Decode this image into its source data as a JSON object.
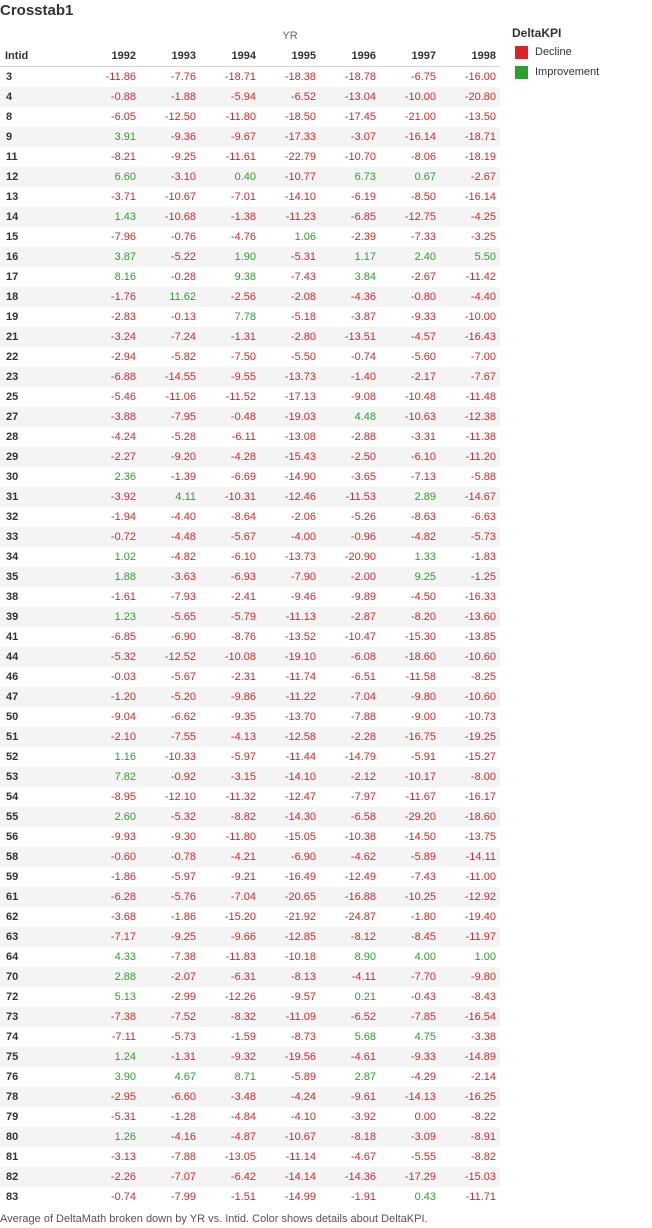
{
  "title": "Crosstab1",
  "column_group_label": "YR",
  "row_header": "Intid",
  "legend": {
    "title": "DeltaKPI",
    "items": [
      {
        "label": "Decline",
        "color": "#d62728"
      },
      {
        "label": "Improvement",
        "color": "#2ca02c"
      }
    ]
  },
  "colors": {
    "decline": "#d62728",
    "improvement": "#2ca02c"
  },
  "caption": "Average of DeltaMath broken down by YR vs. Intid.  Color shows details about DeltaKPI.",
  "chart_data": {
    "type": "table",
    "columns": [
      "1992",
      "1993",
      "1994",
      "1995",
      "1996",
      "1997",
      "1998"
    ],
    "rows": [
      {
        "id": "3",
        "values": [
          "-11.86",
          "-7.76",
          "-18.71",
          "-18.38",
          "-18.78",
          "-6.75",
          "-16.00"
        ]
      },
      {
        "id": "4",
        "values": [
          "-0.88",
          "-1.88",
          "-5.94",
          "-6.52",
          "-13.04",
          "-10.00",
          "-20.80"
        ]
      },
      {
        "id": "8",
        "values": [
          "-6.05",
          "-12.50",
          "-11.80",
          "-18.50",
          "-17.45",
          "-21.00",
          "-13.50"
        ]
      },
      {
        "id": "9",
        "values": [
          "3.91",
          "-9.36",
          "-9.67",
          "-17.33",
          "-3.07",
          "-16.14",
          "-18.71"
        ]
      },
      {
        "id": "11",
        "values": [
          "-8.21",
          "-9.25",
          "-11.61",
          "-22.79",
          "-10.70",
          "-8.06",
          "-18.19"
        ]
      },
      {
        "id": "12",
        "values": [
          "6.60",
          "-3.10",
          "0.40",
          "-10.77",
          "6.73",
          "0.67",
          "-2.67"
        ]
      },
      {
        "id": "13",
        "values": [
          "-3.71",
          "-10.67",
          "-7.01",
          "-14.10",
          "-6.19",
          "-8.50",
          "-16.14"
        ]
      },
      {
        "id": "14",
        "values": [
          "1.43",
          "-10.68",
          "-1.38",
          "-11.23",
          "-6.85",
          "-12.75",
          "-4.25"
        ]
      },
      {
        "id": "15",
        "values": [
          "-7.96",
          "-0.76",
          "-4.76",
          "1.06",
          "-2.39",
          "-7.33",
          "-3.25"
        ]
      },
      {
        "id": "16",
        "values": [
          "3.87",
          "-5.22",
          "1.90",
          "-5.31",
          "1.17",
          "2.40",
          "5.50"
        ]
      },
      {
        "id": "17",
        "values": [
          "8.16",
          "-0.28",
          "9.38",
          "-7.43",
          "3.84",
          "-2.67",
          "-11.42"
        ]
      },
      {
        "id": "18",
        "values": [
          "-1.76",
          "11.62",
          "-2.56",
          "-2.08",
          "-4.36",
          "-0.80",
          "-4.40"
        ]
      },
      {
        "id": "19",
        "values": [
          "-2.83",
          "-0.13",
          "7.78",
          "-5.18",
          "-3.87",
          "-9.33",
          "-10.00"
        ]
      },
      {
        "id": "21",
        "values": [
          "-3.24",
          "-7.24",
          "-1.31",
          "-2.80",
          "-13.51",
          "-4.57",
          "-16.43"
        ]
      },
      {
        "id": "22",
        "values": [
          "-2.94",
          "-5.82",
          "-7.50",
          "-5.50",
          "-0.74",
          "-5.60",
          "-7.00"
        ]
      },
      {
        "id": "23",
        "values": [
          "-6.88",
          "-14.55",
          "-9.55",
          "-13.73",
          "-1.40",
          "-2.17",
          "-7.67"
        ]
      },
      {
        "id": "25",
        "values": [
          "-5.46",
          "-11.06",
          "-11.52",
          "-17.13",
          "-9.08",
          "-10.48",
          "-11.48"
        ]
      },
      {
        "id": "27",
        "values": [
          "-3.88",
          "-7.95",
          "-0.48",
          "-19.03",
          "4.48",
          "-10.63",
          "-12.38"
        ]
      },
      {
        "id": "28",
        "values": [
          "-4.24",
          "-5.28",
          "-6.11",
          "-13.08",
          "-2.88",
          "-3.31",
          "-11.38"
        ]
      },
      {
        "id": "29",
        "values": [
          "-2.27",
          "-9.20",
          "-4.28",
          "-15.43",
          "-2.50",
          "-6.10",
          "-11.20"
        ]
      },
      {
        "id": "30",
        "values": [
          "2.36",
          "-1.39",
          "-6.69",
          "-14.90",
          "-3.65",
          "-7.13",
          "-5.88"
        ]
      },
      {
        "id": "31",
        "values": [
          "-3.92",
          "4.11",
          "-10.31",
          "-12.46",
          "-11.53",
          "2.89",
          "-14.67"
        ]
      },
      {
        "id": "32",
        "values": [
          "-1.94",
          "-4.40",
          "-8.64",
          "-2.06",
          "-5.26",
          "-8.63",
          "-6.63"
        ]
      },
      {
        "id": "33",
        "values": [
          "-0.72",
          "-4.48",
          "-5.67",
          "-4.00",
          "-0.96",
          "-4.82",
          "-5.73"
        ]
      },
      {
        "id": "34",
        "values": [
          "1.02",
          "-4.82",
          "-6.10",
          "-13.73",
          "-20.90",
          "1.33",
          "-1.83"
        ]
      },
      {
        "id": "35",
        "values": [
          "1.88",
          "-3.63",
          "-6.93",
          "-7.90",
          "-2.00",
          "9.25",
          "-1.25"
        ]
      },
      {
        "id": "38",
        "values": [
          "-1.61",
          "-7.93",
          "-2.41",
          "-9.46",
          "-9.89",
          "-4.50",
          "-16.33"
        ]
      },
      {
        "id": "39",
        "values": [
          "1.23",
          "-5.65",
          "-5.79",
          "-11.13",
          "-2.87",
          "-8.20",
          "-13.60"
        ]
      },
      {
        "id": "41",
        "values": [
          "-6.85",
          "-6.90",
          "-8.76",
          "-13.52",
          "-10.47",
          "-15.30",
          "-13.85"
        ]
      },
      {
        "id": "44",
        "values": [
          "-5.32",
          "-12.52",
          "-10.08",
          "-19.10",
          "-6.08",
          "-18.60",
          "-10.60"
        ]
      },
      {
        "id": "46",
        "values": [
          "-0.03",
          "-5.67",
          "-2.31",
          "-11.74",
          "-6.51",
          "-11.58",
          "-8.25"
        ]
      },
      {
        "id": "47",
        "values": [
          "-1.20",
          "-5.20",
          "-9.86",
          "-11.22",
          "-7.04",
          "-9.80",
          "-10.60"
        ]
      },
      {
        "id": "50",
        "values": [
          "-9.04",
          "-6.62",
          "-9.35",
          "-13.70",
          "-7.88",
          "-9.00",
          "-10.73"
        ]
      },
      {
        "id": "51",
        "values": [
          "-2.10",
          "-7.55",
          "-4.13",
          "-12.58",
          "-2.28",
          "-16.75",
          "-19.25"
        ]
      },
      {
        "id": "52",
        "values": [
          "1.16",
          "-10.33",
          "-5.97",
          "-11.44",
          "-14.79",
          "-5.91",
          "-15.27"
        ]
      },
      {
        "id": "53",
        "values": [
          "7.82",
          "-0.92",
          "-3.15",
          "-14.10",
          "-2.12",
          "-10.17",
          "-8.00"
        ]
      },
      {
        "id": "54",
        "values": [
          "-8.95",
          "-12.10",
          "-11.32",
          "-12.47",
          "-7.97",
          "-11.67",
          "-16.17"
        ]
      },
      {
        "id": "55",
        "values": [
          "2.60",
          "-5.32",
          "-8.82",
          "-14.30",
          "-6.58",
          "-29.20",
          "-18.60"
        ]
      },
      {
        "id": "56",
        "values": [
          "-9.93",
          "-9.30",
          "-11.80",
          "-15.05",
          "-10.38",
          "-14.50",
          "-13.75"
        ]
      },
      {
        "id": "58",
        "values": [
          "-0.60",
          "-0.78",
          "-4.21",
          "-6.90",
          "-4.62",
          "-5.89",
          "-14.11"
        ]
      },
      {
        "id": "59",
        "values": [
          "-1.86",
          "-5.97",
          "-9.21",
          "-16.49",
          "-12.49",
          "-7.43",
          "-11.00"
        ]
      },
      {
        "id": "61",
        "values": [
          "-6.28",
          "-5.76",
          "-7.04",
          "-20.65",
          "-16.88",
          "-10.25",
          "-12.92"
        ]
      },
      {
        "id": "62",
        "values": [
          "-3.68",
          "-1.86",
          "-15.20",
          "-21.92",
          "-24.87",
          "-1.80",
          "-19.40"
        ]
      },
      {
        "id": "63",
        "values": [
          "-7.17",
          "-9.25",
          "-9.66",
          "-12.85",
          "-8.12",
          "-8.45",
          "-11.97"
        ]
      },
      {
        "id": "64",
        "values": [
          "4.33",
          "-7.38",
          "-11.83",
          "-10.18",
          "8.90",
          "4.00",
          "1.00"
        ]
      },
      {
        "id": "70",
        "values": [
          "2.88",
          "-2.07",
          "-6.31",
          "-8.13",
          "-4.11",
          "-7.70",
          "-9.80"
        ]
      },
      {
        "id": "72",
        "values": [
          "5.13",
          "-2.99",
          "-12.26",
          "-9.57",
          "0.21",
          "-0.43",
          "-8.43"
        ]
      },
      {
        "id": "73",
        "values": [
          "-7.38",
          "-7.52",
          "-8.32",
          "-11.09",
          "-6.52",
          "-7.85",
          "-16.54"
        ]
      },
      {
        "id": "74",
        "values": [
          "-7.11",
          "-5.73",
          "-1.59",
          "-8.73",
          "5.68",
          "4.75",
          "-3.38"
        ]
      },
      {
        "id": "75",
        "values": [
          "1.24",
          "-1.31",
          "-9.32",
          "-19.56",
          "-4.61",
          "-9.33",
          "-14.89"
        ]
      },
      {
        "id": "76",
        "values": [
          "3.90",
          "4.67",
          "8.71",
          "-5.89",
          "2.87",
          "-4.29",
          "-2.14"
        ]
      },
      {
        "id": "78",
        "values": [
          "-2.95",
          "-6.60",
          "-3.48",
          "-4.24",
          "-9.61",
          "-14.13",
          "-16.25"
        ]
      },
      {
        "id": "79",
        "values": [
          "-5.31",
          "-1.28",
          "-4.84",
          "-4.10",
          "-3.92",
          "0.00",
          "-8.22"
        ]
      },
      {
        "id": "80",
        "values": [
          "1.26",
          "-4.16",
          "-4.87",
          "-10.67",
          "-8.18",
          "-3.09",
          "-8.91"
        ]
      },
      {
        "id": "81",
        "values": [
          "-3.13",
          "-7.88",
          "-13.05",
          "-11.14",
          "-4.67",
          "-5.55",
          "-8.82"
        ]
      },
      {
        "id": "82",
        "values": [
          "-2.26",
          "-7.07",
          "-6.42",
          "-14.14",
          "-14.36",
          "-17.29",
          "-15.03"
        ]
      },
      {
        "id": "83",
        "values": [
          "-0.74",
          "-7.99",
          "-1.51",
          "-14.99",
          "-1.91",
          "0.43",
          "-11.71"
        ]
      }
    ]
  }
}
